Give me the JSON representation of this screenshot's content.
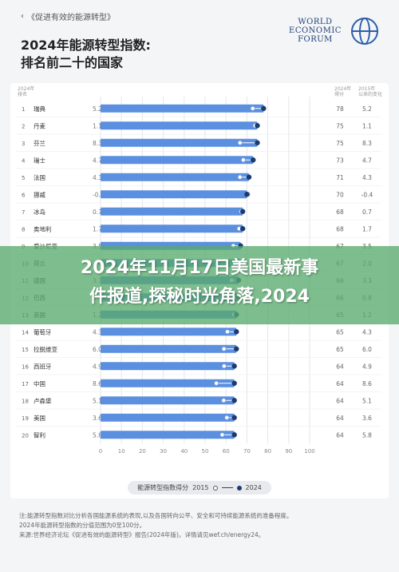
{
  "page": {
    "kicker": "《促进有效的能源转型》",
    "back_icon": "chevron-left-icon",
    "title_line1": "2024年能源转型指数:",
    "title_line2": "排名前二十的国家",
    "logo": {
      "line1": "WORLD",
      "line2": "ECONOMIC",
      "line3": "FORUM",
      "icon": "globe-icon"
    },
    "headers": {
      "rank_line1": "2024年",
      "rank_line2": "排名",
      "score_line1": "2024年",
      "score_line2": "得分",
      "change_line1": "2015年",
      "change_line2": "以来的变化"
    },
    "legend": {
      "label": "能源转型指数得分",
      "y2015": "2015",
      "y2024": "2024"
    },
    "footnotes": [
      "注:能源转型指数对比分析各国能源系统的表现,以及各国转向公平、安全和可持续能源系统的准备程度。",
      "2024年能源转型指数的分值范围为0至100分。",
      "来源:世界经济论坛《促进有效的能源转型》报告(2024年版)。详情请见wef.ch/energy24。"
    ],
    "banner_line1": "2024年11月17日美国最新事",
    "banner_line2": "件报道,探秘时光角落,2024",
    "colors": {
      "bar": "#5b8fe0",
      "dot_2024": "#1b3a6e",
      "dot_2015": "#ffffff",
      "banner": "#58aa6e"
    }
  },
  "chart_data": {
    "type": "bar",
    "title": "2024年能源转型指数:排名前二十的国家",
    "categories": [
      "瑞典",
      "丹麦",
      "芬兰",
      "瑞士",
      "法国",
      "挪威",
      "冰岛",
      "奥地利",
      "爱沙尼亚",
      "荷兰",
      "德国",
      "巴西",
      "英国",
      "葡萄牙",
      "拉脱维亚",
      "西班牙",
      "中国",
      "卢森堡",
      "美国",
      "智利"
    ],
    "ranks": [
      "1",
      "2",
      "3",
      "4",
      "5",
      "6",
      "7",
      "8",
      "9",
      "10",
      "11",
      "12",
      "13",
      "14",
      "15",
      "16",
      "17",
      "18",
      "19",
      "20"
    ],
    "series": [
      {
        "name": "2024",
        "values": [
          78,
          75,
          75,
          73,
          71,
          70,
          68,
          68,
          67,
          67,
          66,
          66,
          65,
          65,
          65,
          64,
          64,
          64,
          64,
          64
        ]
      },
      {
        "name": "2015",
        "values": [
          72.8,
          73.9,
          66.7,
          68.3,
          66.7,
          70.4,
          67.3,
          66.3,
          63.5,
          65.0,
          62.7,
          65.2,
          63.8,
          60.7,
          59.0,
          59.1,
          55.4,
          58.9,
          60.4,
          58.2
        ]
      }
    ],
    "score_labels": [
      "78",
      "75",
      "75",
      "73",
      "71",
      "70",
      "68",
      "68",
      "67",
      "67",
      "66",
      "66",
      "65",
      "65",
      "65",
      "64",
      "64",
      "64",
      "64",
      "64"
    ],
    "change_labels": [
      "5.2",
      "1.1",
      "8.3",
      "4.7",
      "4.3",
      "-0.4",
      "0.7",
      "1.7",
      "3.5",
      "2.0",
      "3.3",
      "0.8",
      "1.2",
      "4.3",
      "6.0",
      "4.9",
      "8.6",
      "5.1",
      "3.6",
      "5.8"
    ],
    "xticks": [
      0,
      10,
      20,
      30,
      40,
      50,
      60,
      70,
      80,
      90,
      100
    ],
    "xlim": [
      0,
      100
    ],
    "grid": true,
    "legend": "bottom"
  }
}
